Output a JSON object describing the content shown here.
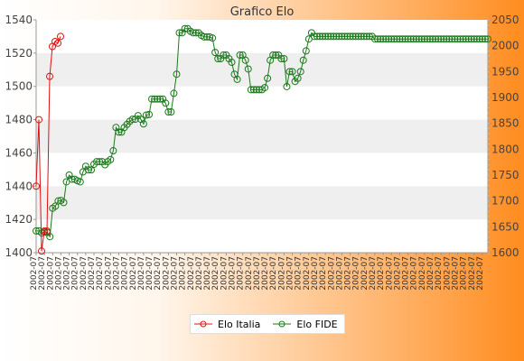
{
  "chart_data": {
    "type": "line",
    "title": "Grafico Elo",
    "y_left": {
      "ylim": [
        1400,
        1540
      ],
      "ticks": [
        1400,
        1420,
        1440,
        1460,
        1480,
        1500,
        1520,
        1540
      ]
    },
    "y_right": {
      "ylim": [
        1600,
        2050
      ],
      "ticks": [
        1600,
        1650,
        1700,
        1750,
        1800,
        1850,
        1900,
        1950,
        2000,
        2050
      ]
    },
    "x_tick_label_sample": "2002-07",
    "grid": "horizontal bands",
    "legend": {
      "placement": "bottom-center"
    },
    "colors": {
      "italia": "#e01010",
      "fide": "#1a7a1a"
    },
    "series": [
      {
        "name": "Elo Italia",
        "axis": "left",
        "values": [
          1440,
          1480,
          1401,
          1413,
          1413,
          1506,
          1524,
          1527,
          1526,
          1530
        ]
      },
      {
        "name": "Elo FIDE",
        "axis": "right",
        "values": [
          1642,
          1642,
          1638,
          1640,
          1639,
          1631,
          1686,
          1690,
          1700,
          1701,
          1697,
          1737,
          1750,
          1742,
          1742,
          1739,
          1737,
          1756,
          1767,
          1760,
          1760,
          1771,
          1776,
          1776,
          1776,
          1770,
          1776,
          1780,
          1797,
          1842,
          1833,
          1833,
          1842,
          1848,
          1854,
          1858,
          1858,
          1865,
          1858,
          1849,
          1866,
          1867,
          1897,
          1897,
          1897,
          1897,
          1897,
          1889,
          1872,
          1872,
          1908,
          1945,
          2025,
          2025,
          2033,
          2033,
          2028,
          2025,
          2025,
          2025,
          2020,
          2017,
          2017,
          2017,
          2015,
          1987,
          1975,
          1975,
          1982,
          1982,
          1975,
          1968,
          1945,
          1935,
          1982,
          1982,
          1972,
          1955,
          1915,
          1915,
          1915,
          1915,
          1915,
          1919,
          1937,
          1972,
          1982,
          1982,
          1982,
          1975,
          1975,
          1921,
          1950,
          1950,
          1931,
          1937,
          1950,
          1972,
          1990,
          2013,
          2025,
          2018,
          2018,
          2018,
          2018,
          2018,
          2018,
          2018,
          2018,
          2018,
          2018,
          2018,
          2018,
          2018,
          2018,
          2018,
          2018,
          2018,
          2018,
          2018,
          2018,
          2018,
          2018,
          2013,
          2013,
          2013,
          2013,
          2013,
          2013,
          2013,
          2013,
          2013,
          2013,
          2013,
          2013,
          2013,
          2013,
          2013,
          2013,
          2013,
          2013,
          2013,
          2013,
          2013,
          2013,
          2013,
          2013,
          2013,
          2013,
          2013,
          2013,
          2013,
          2013,
          2013,
          2013,
          2013,
          2013,
          2013,
          2013,
          2013,
          2013,
          2013,
          2013,
          2013,
          2013
        ]
      }
    ]
  }
}
